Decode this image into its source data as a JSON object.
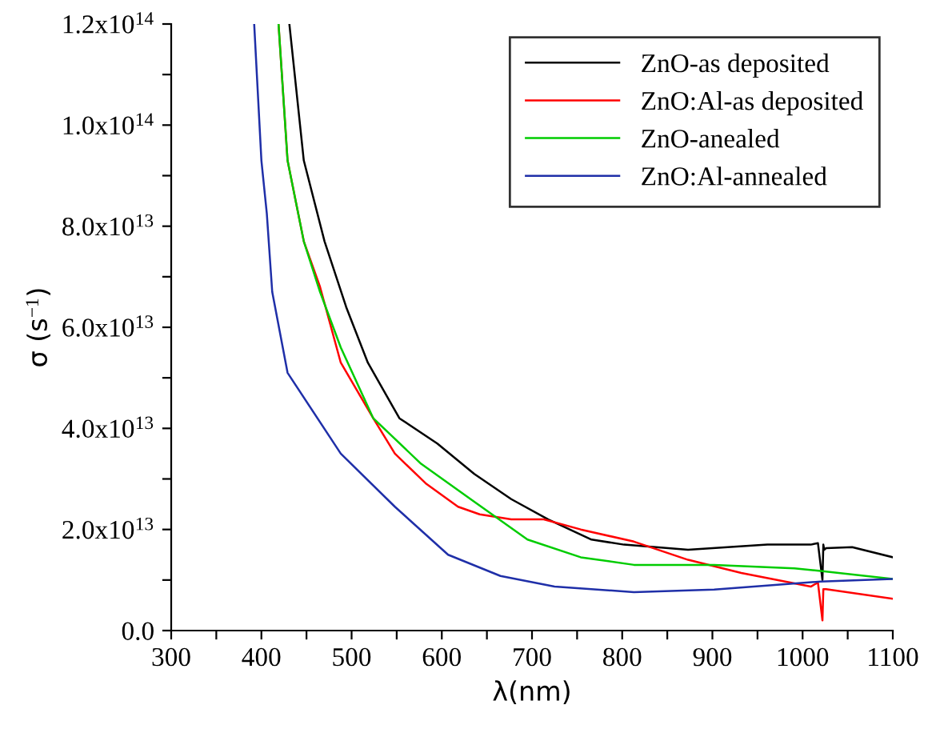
{
  "chart_data": {
    "type": "line",
    "xlabel": "λ(nm)",
    "ylabel": "σ (s$^{−1}$)",
    "xlim": [
      300,
      1100
    ],
    "ylim": [
      0,
      120000000000000.0
    ],
    "xticks": [
      300,
      {
        "value": 350,
        "label": null
      },
      400,
      {
        "value": 450,
        "label": null
      },
      500,
      {
        "value": 550,
        "label": null
      },
      600,
      {
        "value": 650,
        "label": null
      },
      700,
      {
        "value": 750,
        "label": null
      },
      800,
      {
        "value": 850,
        "label": null
      },
      900,
      {
        "value": 950,
        "label": null
      },
      1000,
      {
        "value": 1050,
        "label": null
      },
      1100
    ],
    "yticks": [
      {
        "value": 0,
        "label": "0.0"
      },
      {
        "value": 10000000000000.0,
        "label": null
      },
      {
        "value": 20000000000000.0,
        "label": "2.0x10$^{13}$"
      },
      {
        "value": 30000000000000.0,
        "label": null
      },
      {
        "value": 40000000000000.0,
        "label": "4.0x10$^{13}$"
      },
      {
        "value": 50000000000000.0,
        "label": null
      },
      {
        "value": 60000000000000.0,
        "label": "6.0x10$^{13}$"
      },
      {
        "value": 70000000000000.0,
        "label": null
      },
      {
        "value": 80000000000000.0,
        "label": "8.0x10$^{13}$"
      },
      {
        "value": 90000000000000.0,
        "label": null
      },
      {
        "value": 100000000000000.0,
        "label": "1.0x10$^{14}$"
      },
      {
        "value": 110000000000000.0,
        "label": null
      },
      {
        "value": 120000000000000.0,
        "label": "1.2x10$^{14}$"
      }
    ],
    "grid": false,
    "legend": "top right",
    "marker": "none",
    "line_style": "solid",
    "series": [
      {
        "name": "ZnO-as deposited",
        "color": "#000000",
        "x": [
          431,
          447,
          470,
          494,
          518,
          553,
          595,
          636,
          677,
          718,
          766,
          802,
          873,
          961,
          1009,
          1017,
          1022,
          1023,
          1024,
          1026,
          1055,
          1100
        ],
        "values": [
          120000000000000.0,
          93000000000000.0,
          77000000000000.0,
          64000000000000.0,
          53000000000000.0,
          42000000000000.0,
          37000000000000.0,
          31000000000000.0,
          26000000000000.0,
          22000000000000.0,
          18000000000000.0,
          17000000000000.0,
          16000000000000.0,
          17000000000000.0,
          17000000000000.0,
          17300000000000.0,
          10000000000000.0,
          17000000000000.0,
          16000000000000.0,
          16300000000000.0,
          16500000000000.0,
          14500000000000.0
        ]
      },
      {
        "name": "ZnO:Al-as deposited",
        "color": "#ff0000",
        "x": [
          419,
          429,
          447,
          465,
          488,
          524,
          548,
          583,
          618,
          642,
          677,
          713,
          754,
          813,
          873,
          932,
          1009,
          1017,
          1022,
          1023,
          1026,
          1100
        ],
        "values": [
          120000000000000.0,
          93000000000000.0,
          77000000000000.0,
          68000000000000.0,
          53000000000000.0,
          42000000000000.0,
          35000000000000.0,
          29000000000000.0,
          24500000000000.0,
          23000000000000.0,
          22000000000000.0,
          22000000000000.0,
          20000000000000.0,
          17600000000000.0,
          14000000000000.0,
          11400000000000.0,
          8700000000000.0,
          9500000000000.0,
          2000000000000.0,
          8200000000000.0,
          8200000000000.0,
          6300000000000.0
        ]
      },
      {
        "name": "ZnO-anealed",
        "color": "#00cc00",
        "x": [
          419,
          429,
          447,
          465,
          488,
          524,
          577,
          636,
          695,
          754,
          813,
          902,
          991,
          1020,
          1100
        ],
        "values": [
          120000000000000.0,
          93000000000000.0,
          77000000000000.0,
          67000000000000.0,
          56000000000000.0,
          42000000000000.0,
          33000000000000.0,
          25500000000000.0,
          18000000000000.0,
          14500000000000.0,
          13000000000000.0,
          13000000000000.0,
          12300000000000.0,
          11800000000000.0,
          10200000000000.0
        ]
      },
      {
        "name": "ZnO:Al-annealed",
        "color": "#1f2fa8",
        "x": [
          392,
          400,
          406,
          412,
          429,
          488,
          548,
          607,
          665,
          725,
          813,
          902,
          1020,
          1100
        ],
        "values": [
          120000000000000.0,
          93000000000000.0,
          82500000000000.0,
          67000000000000.0,
          51000000000000.0,
          35000000000000.0,
          24500000000000.0,
          15000000000000.0,
          10800000000000.0,
          8700000000000.0,
          7600000000000.0,
          8100000000000.0,
          9700000000000.0,
          10200000000000.0
        ]
      }
    ]
  }
}
